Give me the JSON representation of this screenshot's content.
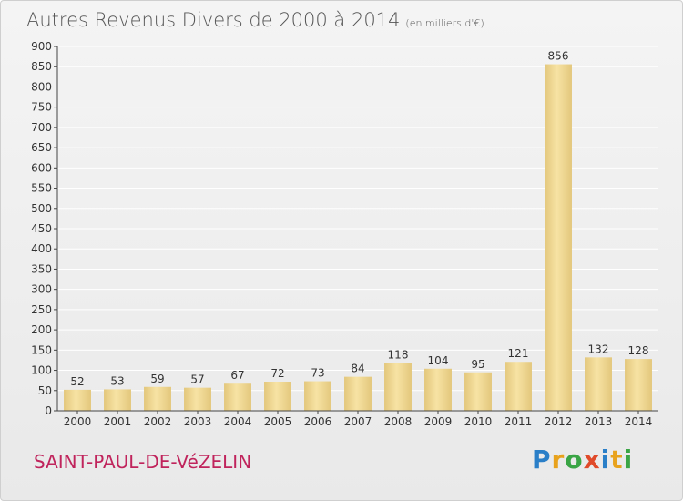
{
  "title": "Autres Revenus Divers de 2000 à 2014",
  "subtitle": "(en milliers d'€)",
  "commune": "SAINT-PAUL-DE-VéZELIN",
  "logo": {
    "letters": [
      "P",
      "r",
      "o",
      "x",
      "i",
      "t",
      "i"
    ],
    "colors": [
      "#2a7fc8",
      "#e8a21c",
      "#3aa545",
      "#e04a2a",
      "#2a7fc8",
      "#e8a21c",
      "#3aa545"
    ]
  },
  "colors": {
    "bar_light": "#f7e3a4",
    "bar_dark": "#e3c77c",
    "axis": "#444444",
    "grid": "#ffffff"
  },
  "chart_data": {
    "type": "bar",
    "categories": [
      "2000",
      "2001",
      "2002",
      "2003",
      "2004",
      "2005",
      "2006",
      "2007",
      "2008",
      "2009",
      "2010",
      "2011",
      "2012",
      "2013",
      "2014"
    ],
    "values": [
      52,
      53,
      59,
      57,
      67,
      72,
      73,
      84,
      118,
      104,
      95,
      121,
      856,
      132,
      128
    ],
    "ylim": [
      0,
      900
    ],
    "yticks": [
      0,
      50,
      100,
      150,
      200,
      250,
      300,
      350,
      400,
      450,
      500,
      550,
      600,
      650,
      700,
      750,
      800,
      850,
      900
    ],
    "grid": true,
    "legend": "none"
  }
}
